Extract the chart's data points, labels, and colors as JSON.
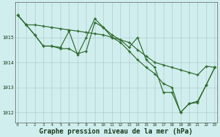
{
  "background_color": "#d0eeee",
  "grid_color": "#b0c8c8",
  "line_color": "#2d6a2d",
  "xlabel": "Graphe pression niveau de la mer (hPa)",
  "xlabel_fontsize": 7,
  "ylabel_ticks": [
    1012,
    1013,
    1014,
    1015
  ],
  "xlim": [
    -0.3,
    23.3
  ],
  "ylim": [
    1011.6,
    1016.4
  ],
  "xticks": [
    0,
    1,
    2,
    3,
    4,
    5,
    6,
    7,
    8,
    9,
    10,
    11,
    12,
    13,
    14,
    15,
    16,
    17,
    18,
    19,
    20,
    21,
    22,
    23
  ],
  "series1_x": [
    0,
    1,
    2,
    3,
    4,
    5,
    6,
    7,
    8,
    9,
    10,
    11,
    12,
    13,
    14,
    15,
    16,
    17,
    18,
    19,
    20,
    21,
    22,
    23
  ],
  "series1_y": [
    1015.9,
    1015.5,
    1015.5,
    1015.45,
    1015.4,
    1015.35,
    1015.3,
    1015.25,
    1015.2,
    1015.15,
    1015.1,
    1015.0,
    1014.9,
    1014.8,
    1014.5,
    1014.25,
    1014.0,
    1013.9,
    1013.8,
    1013.7,
    1013.6,
    1013.5,
    1013.85,
    1013.8
  ],
  "series2_x": [
    0,
    1,
    2,
    3,
    4,
    5,
    6,
    7,
    8,
    9,
    10,
    11,
    12,
    13,
    14,
    15,
    16,
    17,
    18,
    19,
    20,
    21,
    22,
    23
  ],
  "series2_y": [
    1015.9,
    1015.5,
    1015.1,
    1014.65,
    1014.65,
    1014.6,
    1015.25,
    1014.3,
    1015.0,
    1015.75,
    1015.4,
    1015.1,
    1014.9,
    1014.6,
    1015.0,
    1014.1,
    1013.8,
    1012.8,
    1012.8,
    1012.0,
    1012.35,
    1012.4,
    1013.1,
    1013.8
  ],
  "series3_x": [
    0,
    1,
    2,
    3,
    4,
    5,
    6,
    7,
    8,
    9,
    10,
    11,
    12,
    13,
    14,
    15,
    16,
    17,
    18,
    19,
    20,
    21,
    22,
    23
  ],
  "series3_y": [
    1015.9,
    1015.5,
    1015.1,
    1014.65,
    1014.65,
    1014.55,
    1014.55,
    1014.35,
    1014.45,
    1015.6,
    1015.4,
    1015.0,
    1014.8,
    1014.45,
    1014.1,
    1013.8,
    1013.55,
    1013.15,
    1013.0,
    1012.0,
    1012.35,
    1012.45,
    1013.1,
    1013.8
  ]
}
